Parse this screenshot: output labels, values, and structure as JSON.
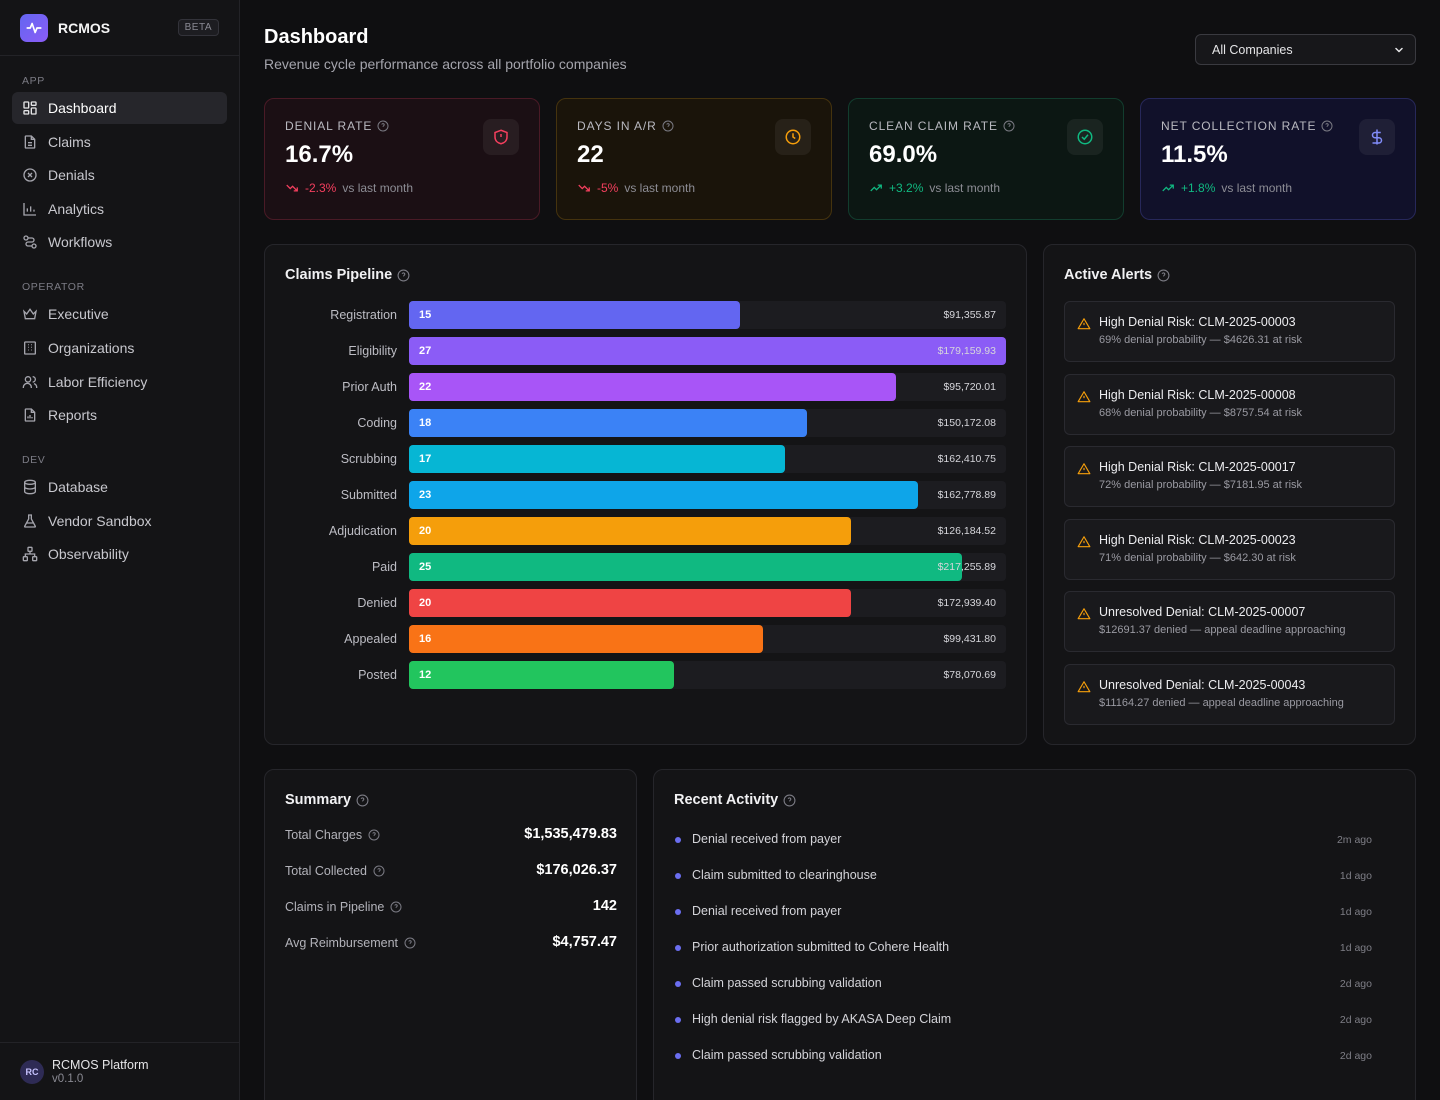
{
  "brand": {
    "name": "RCMOS",
    "badge": "BETA"
  },
  "sidebar": {
    "sections": [
      {
        "heading": "APP",
        "items": [
          {
            "label": "Dashboard",
            "icon": "dashboard-icon",
            "active": true
          },
          {
            "label": "Claims",
            "icon": "document-icon"
          },
          {
            "label": "Denials",
            "icon": "x-circle-icon"
          },
          {
            "label": "Analytics",
            "icon": "bar-chart-icon"
          },
          {
            "label": "Workflows",
            "icon": "workflow-icon"
          }
        ]
      },
      {
        "heading": "OPERATOR",
        "items": [
          {
            "label": "Executive",
            "icon": "crown-icon"
          },
          {
            "label": "Organizations",
            "icon": "building-icon"
          },
          {
            "label": "Labor Efficiency",
            "icon": "users-icon"
          },
          {
            "label": "Reports",
            "icon": "report-icon"
          }
        ]
      },
      {
        "heading": "DEV",
        "items": [
          {
            "label": "Database",
            "icon": "database-icon"
          },
          {
            "label": "Vendor Sandbox",
            "icon": "flask-icon"
          },
          {
            "label": "Observability",
            "icon": "network-icon"
          }
        ]
      }
    ]
  },
  "footer": {
    "avatar": "RC",
    "name": "RCMOS Platform",
    "version": "v0.1.0"
  },
  "header": {
    "title": "Dashboard",
    "subtitle": "Revenue cycle performance across all portfolio companies",
    "company_filter": "All Companies"
  },
  "kpis": [
    {
      "label": "DENIAL RATE",
      "value": "16.7%",
      "delta": "-2.3%",
      "vs": "vs last month",
      "trend": "down",
      "icon": "shield-icon",
      "accent": "#f43f5e"
    },
    {
      "label": "DAYS IN A/R",
      "value": "22",
      "delta": "-5%",
      "vs": "vs last month",
      "trend": "down",
      "icon": "clock-icon",
      "accent": "#f59e0b"
    },
    {
      "label": "CLEAN CLAIM RATE",
      "value": "69.0%",
      "delta": "+3.2%",
      "vs": "vs last month",
      "trend": "up",
      "icon": "check-circle-icon",
      "accent": "#10b981"
    },
    {
      "label": "NET COLLECTION RATE",
      "value": "11.5%",
      "delta": "+1.8%",
      "vs": "vs last month",
      "trend": "up",
      "icon": "dollar-icon",
      "accent": "#818cf8"
    }
  ],
  "pipeline": {
    "title": "Claims Pipeline",
    "stages": [
      {
        "label": "Registration",
        "count": "15",
        "amount": "$91,355.87",
        "fill": 0.555,
        "color": "#6366f1"
      },
      {
        "label": "Eligibility",
        "count": "27",
        "amount": "$179,159.93",
        "fill": 1.0,
        "color": "#8b5cf6"
      },
      {
        "label": "Prior Auth",
        "count": "22",
        "amount": "$95,720.01",
        "fill": 0.815,
        "color": "#a855f7"
      },
      {
        "label": "Coding",
        "count": "18",
        "amount": "$150,172.08",
        "fill": 0.667,
        "color": "#3b82f6"
      },
      {
        "label": "Scrubbing",
        "count": "17",
        "amount": "$162,410.75",
        "fill": 0.63,
        "color": "#06b6d4"
      },
      {
        "label": "Submitted",
        "count": "23",
        "amount": "$162,778.89",
        "fill": 0.852,
        "color": "#0ea5e9"
      },
      {
        "label": "Adjudication",
        "count": "20",
        "amount": "$126,184.52",
        "fill": 0.741,
        "color": "#f59e0b"
      },
      {
        "label": "Paid",
        "count": "25",
        "amount": "$217,255.89",
        "fill": 0.926,
        "color": "#10b981"
      },
      {
        "label": "Denied",
        "count": "20",
        "amount": "$172,939.40",
        "fill": 0.741,
        "color": "#ef4444"
      },
      {
        "label": "Appealed",
        "count": "16",
        "amount": "$99,431.80",
        "fill": 0.593,
        "color": "#f97316"
      },
      {
        "label": "Posted",
        "count": "12",
        "amount": "$78,070.69",
        "fill": 0.444,
        "color": "#22c55e"
      }
    ]
  },
  "alerts": {
    "title": "Active Alerts",
    "items": [
      {
        "title": "High Denial Risk: CLM-2025-00003",
        "desc": "69% denial probability — $4626.31 at risk"
      },
      {
        "title": "High Denial Risk: CLM-2025-00008",
        "desc": "68% denial probability — $8757.54 at risk"
      },
      {
        "title": "High Denial Risk: CLM-2025-00017",
        "desc": "72% denial probability — $7181.95 at risk"
      },
      {
        "title": "High Denial Risk: CLM-2025-00023",
        "desc": "71% denial probability — $642.30 at risk"
      },
      {
        "title": "Unresolved Denial: CLM-2025-00007",
        "desc": "$12691.37 denied — appeal deadline approaching"
      },
      {
        "title": "Unresolved Denial: CLM-2025-00043",
        "desc": "$11164.27 denied — appeal deadline approaching"
      }
    ]
  },
  "summary": {
    "title": "Summary",
    "rows": [
      {
        "label": "Total Charges",
        "value": "$1,535,479.83"
      },
      {
        "label": "Total Collected",
        "value": "$176,026.37"
      },
      {
        "label": "Claims in Pipeline",
        "value": "142"
      },
      {
        "label": "Avg Reimbursement",
        "value": "$4,757.47"
      }
    ]
  },
  "activity": {
    "title": "Recent Activity",
    "items": [
      {
        "text": "Denial received from payer",
        "time": "2m ago"
      },
      {
        "text": "Claim submitted to clearinghouse",
        "time": "1d ago"
      },
      {
        "text": "Denial received from payer",
        "time": "1d ago"
      },
      {
        "text": "Prior authorization submitted to Cohere Health",
        "time": "1d ago"
      },
      {
        "text": "Claim passed scrubbing validation",
        "time": "2d ago"
      },
      {
        "text": "High denial risk flagged by AKASA Deep Claim",
        "time": "2d ago"
      },
      {
        "text": "Claim passed scrubbing validation",
        "time": "2d ago"
      }
    ]
  }
}
